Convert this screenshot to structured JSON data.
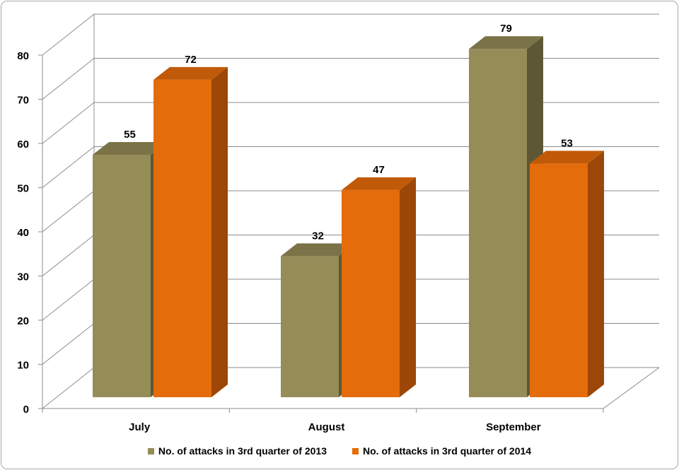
{
  "chart_data": {
    "type": "bar",
    "categories": [
      "July",
      "August",
      "September"
    ],
    "series": [
      {
        "name": "No. of attacks in 3rd quarter of 2013",
        "values": [
          55,
          32,
          79
        ],
        "color": "#958c58",
        "side_color": "#5d5735",
        "top_color": "#7b7347"
      },
      {
        "name": "No. of attacks in 3rd quarter of 2014",
        "values": [
          72,
          47,
          53
        ],
        "color": "#e46c0a",
        "side_color": "#9c4707",
        "top_color": "#c05a08"
      }
    ],
    "yticks": [
      0,
      10,
      20,
      30,
      40,
      50,
      60,
      70,
      80
    ],
    "ylim": [
      0,
      80
    ],
    "grid": true,
    "legend_position": "bottom",
    "data_labels": true,
    "style": "3d-bar"
  }
}
